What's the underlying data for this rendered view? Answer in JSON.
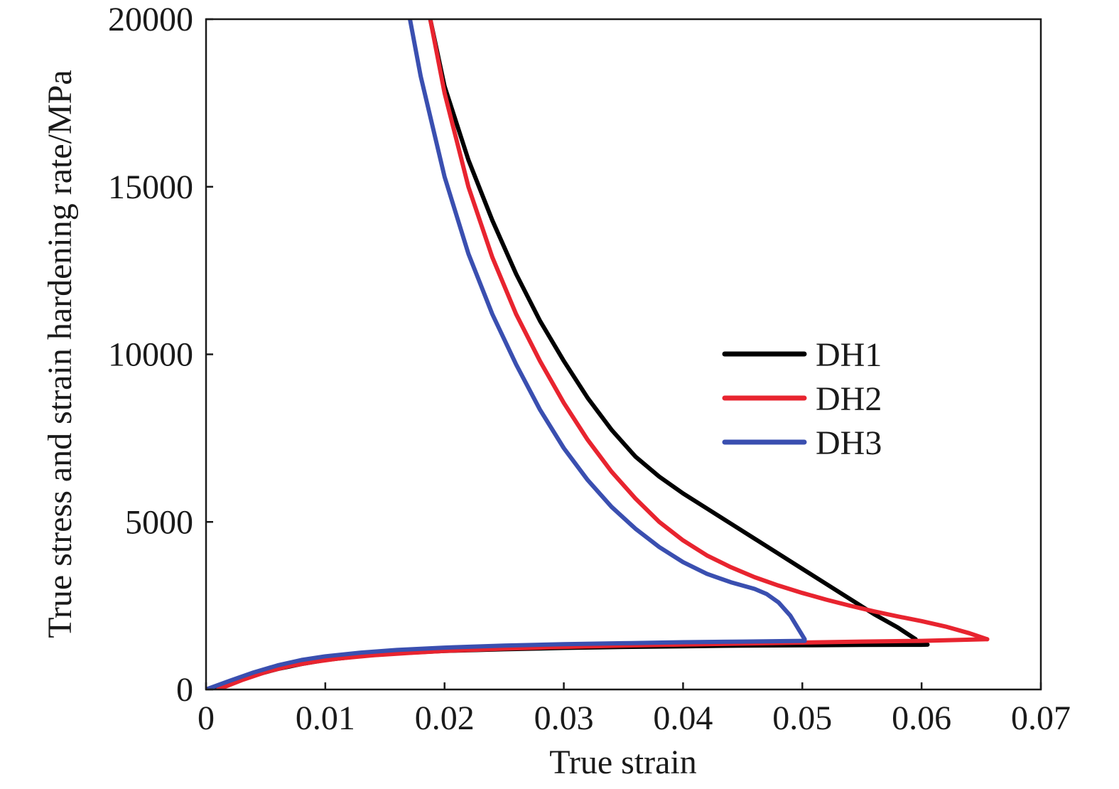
{
  "chart_data": {
    "type": "line",
    "xlabel": "True strain",
    "ylabel": "True stress and strain hardening rate/MPa",
    "xlim": [
      0,
      0.07
    ],
    "ylim": [
      0,
      20000
    ],
    "x_ticks": [
      0,
      0.01,
      0.02,
      0.03,
      0.04,
      0.05,
      0.06,
      0.07
    ],
    "x_tick_labels": [
      "0",
      "0.01",
      "0.02",
      "0.03",
      "0.04",
      "0.05",
      "0.06",
      "0.07"
    ],
    "y_ticks": [
      0,
      5000,
      10000,
      15000,
      20000
    ],
    "y_tick_labels": [
      "0",
      "5000",
      "10000",
      "15000",
      "20000"
    ],
    "grid": false,
    "legend_position": "right-center",
    "series": [
      {
        "name": "DH1",
        "color": "#000000",
        "stress_curve": [
          [
            0.0,
            0
          ],
          [
            0.002,
            220
          ],
          [
            0.004,
            420
          ],
          [
            0.006,
            610
          ],
          [
            0.008,
            760
          ],
          [
            0.01,
            880
          ],
          [
            0.013,
            1000
          ],
          [
            0.016,
            1080
          ],
          [
            0.02,
            1150
          ],
          [
            0.025,
            1200
          ],
          [
            0.03,
            1240
          ],
          [
            0.035,
            1270
          ],
          [
            0.04,
            1290
          ],
          [
            0.045,
            1310
          ],
          [
            0.05,
            1320
          ],
          [
            0.055,
            1330
          ],
          [
            0.06,
            1335
          ],
          [
            0.0605,
            1338
          ]
        ],
        "hardening_rate_curve": [
          [
            0.0188,
            20000
          ],
          [
            0.02,
            18000
          ],
          [
            0.022,
            15800
          ],
          [
            0.024,
            14000
          ],
          [
            0.026,
            12400
          ],
          [
            0.028,
            11000
          ],
          [
            0.03,
            9800
          ],
          [
            0.032,
            8700
          ],
          [
            0.034,
            7750
          ],
          [
            0.036,
            6950
          ],
          [
            0.038,
            6350
          ],
          [
            0.04,
            5850
          ],
          [
            0.042,
            5400
          ],
          [
            0.044,
            4950
          ],
          [
            0.046,
            4500
          ],
          [
            0.048,
            4050
          ],
          [
            0.05,
            3600
          ],
          [
            0.052,
            3150
          ],
          [
            0.054,
            2700
          ],
          [
            0.056,
            2250
          ],
          [
            0.058,
            1850
          ],
          [
            0.0595,
            1500
          ]
        ]
      },
      {
        "name": "DH2",
        "color": "#e8242f",
        "stress_curve": [
          [
            0.001,
            0
          ],
          [
            0.003,
            280
          ],
          [
            0.005,
            520
          ],
          [
            0.007,
            700
          ],
          [
            0.009,
            820
          ],
          [
            0.011,
            920
          ],
          [
            0.014,
            1020
          ],
          [
            0.017,
            1090
          ],
          [
            0.02,
            1150
          ],
          [
            0.025,
            1220
          ],
          [
            0.03,
            1270
          ],
          [
            0.035,
            1310
          ],
          [
            0.04,
            1340
          ],
          [
            0.045,
            1370
          ],
          [
            0.05,
            1400
          ],
          [
            0.055,
            1430
          ],
          [
            0.06,
            1450
          ],
          [
            0.0655,
            1500
          ]
        ],
        "hardening_rate_curve": [
          [
            0.0188,
            20000
          ],
          [
            0.02,
            17800
          ],
          [
            0.022,
            15000
          ],
          [
            0.024,
            12900
          ],
          [
            0.026,
            11200
          ],
          [
            0.028,
            9800
          ],
          [
            0.03,
            8550
          ],
          [
            0.032,
            7450
          ],
          [
            0.034,
            6500
          ],
          [
            0.036,
            5700
          ],
          [
            0.038,
            5000
          ],
          [
            0.04,
            4450
          ],
          [
            0.042,
            4000
          ],
          [
            0.044,
            3650
          ],
          [
            0.046,
            3350
          ],
          [
            0.048,
            3100
          ],
          [
            0.05,
            2880
          ],
          [
            0.052,
            2680
          ],
          [
            0.054,
            2500
          ],
          [
            0.056,
            2330
          ],
          [
            0.058,
            2180
          ],
          [
            0.06,
            2040
          ],
          [
            0.062,
            1880
          ],
          [
            0.064,
            1680
          ],
          [
            0.0655,
            1500
          ]
        ]
      },
      {
        "name": "DH3",
        "color": "#3a4fb0",
        "stress_curve": [
          [
            0.0,
            0
          ],
          [
            0.002,
            260
          ],
          [
            0.004,
            510
          ],
          [
            0.006,
            720
          ],
          [
            0.008,
            880
          ],
          [
            0.01,
            990
          ],
          [
            0.013,
            1100
          ],
          [
            0.016,
            1180
          ],
          [
            0.02,
            1250
          ],
          [
            0.025,
            1310
          ],
          [
            0.03,
            1350
          ],
          [
            0.035,
            1380
          ],
          [
            0.04,
            1410
          ],
          [
            0.045,
            1430
          ],
          [
            0.05,
            1450
          ],
          [
            0.0502,
            1450
          ]
        ],
        "hardening_rate_curve": [
          [
            0.0171,
            20000
          ],
          [
            0.018,
            18300
          ],
          [
            0.02,
            15300
          ],
          [
            0.022,
            13000
          ],
          [
            0.024,
            11200
          ],
          [
            0.026,
            9700
          ],
          [
            0.028,
            8350
          ],
          [
            0.03,
            7200
          ],
          [
            0.032,
            6250
          ],
          [
            0.034,
            5450
          ],
          [
            0.036,
            4800
          ],
          [
            0.038,
            4250
          ],
          [
            0.04,
            3800
          ],
          [
            0.042,
            3450
          ],
          [
            0.044,
            3200
          ],
          [
            0.046,
            3000
          ],
          [
            0.047,
            2850
          ],
          [
            0.048,
            2600
          ],
          [
            0.049,
            2200
          ],
          [
            0.0502,
            1500
          ]
        ]
      }
    ]
  }
}
